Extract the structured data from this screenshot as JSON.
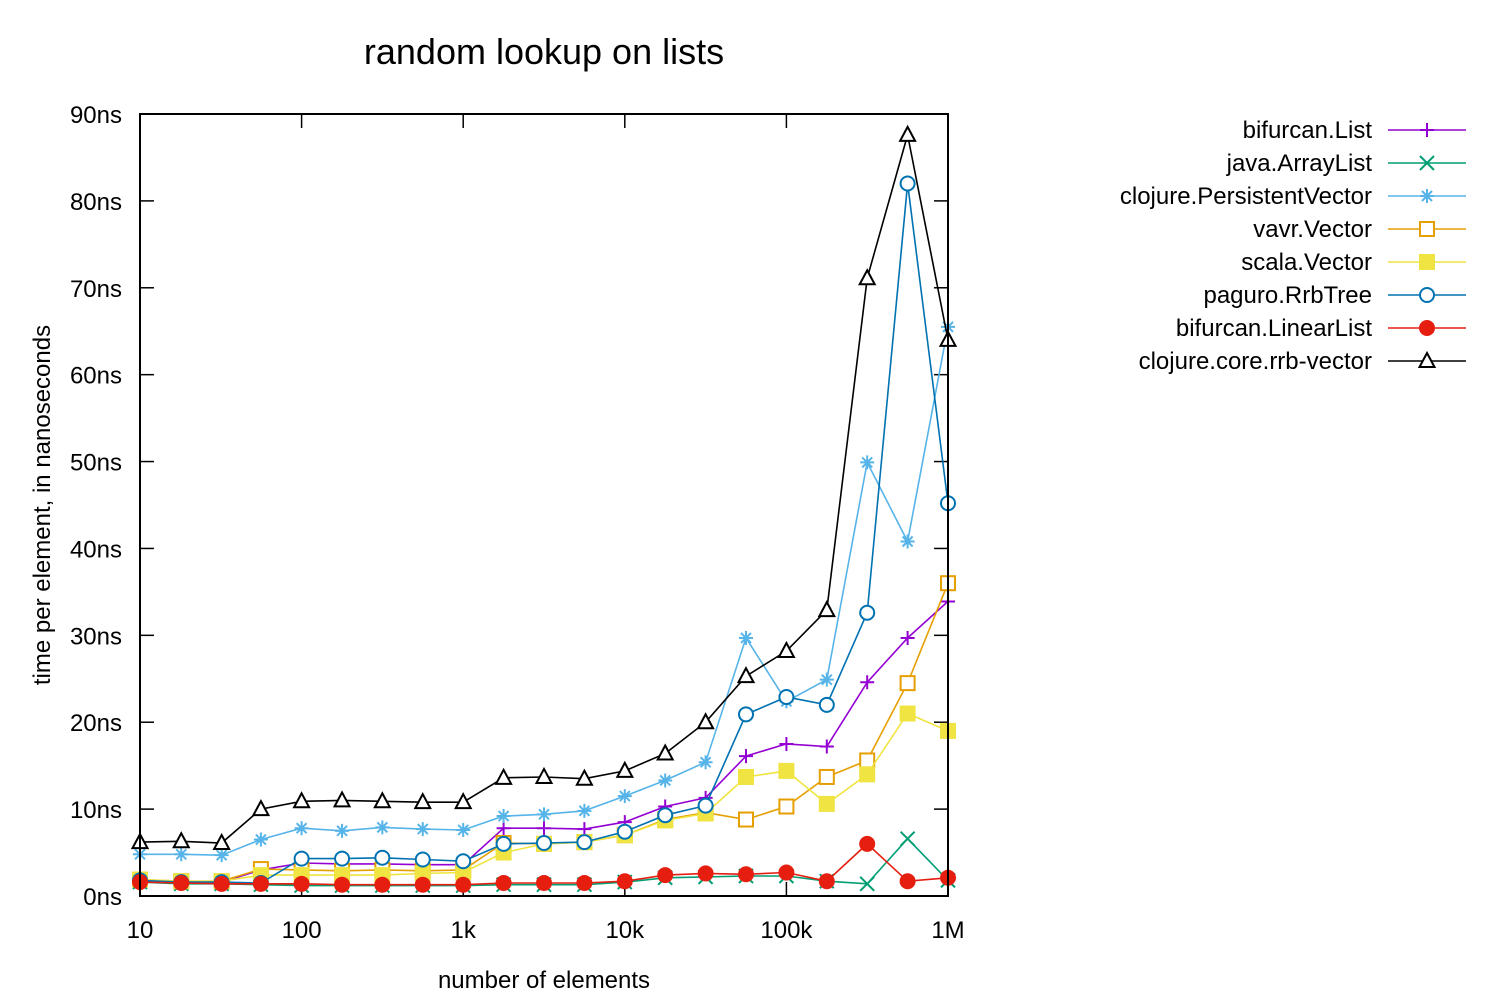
{
  "chart_data": {
    "type": "line",
    "title": "random lookup on lists",
    "xlabel": "number of elements",
    "ylabel": "time per element, in nanoseconds",
    "x_scale": "log10",
    "xlim": [
      10,
      1000000
    ],
    "ylim": [
      0,
      90
    ],
    "x_ticks": [
      {
        "value": 10,
        "label": "10"
      },
      {
        "value": 100,
        "label": "100"
      },
      {
        "value": 1000,
        "label": "1k"
      },
      {
        "value": 10000,
        "label": "10k"
      },
      {
        "value": 100000,
        "label": "100k"
      },
      {
        "value": 1000000,
        "label": "1M"
      }
    ],
    "y_ticks": [
      {
        "value": 0,
        "label": "0ns"
      },
      {
        "value": 10,
        "label": "10ns"
      },
      {
        "value": 20,
        "label": "20ns"
      },
      {
        "value": 30,
        "label": "30ns"
      },
      {
        "value": 40,
        "label": "40ns"
      },
      {
        "value": 50,
        "label": "50ns"
      },
      {
        "value": 60,
        "label": "60ns"
      },
      {
        "value": 70,
        "label": "70ns"
      },
      {
        "value": 80,
        "label": "80ns"
      },
      {
        "value": 90,
        "label": "90ns"
      }
    ],
    "grid": false,
    "legend_position": "right",
    "x": [
      10,
      18,
      32,
      56,
      100,
      178,
      316,
      562,
      1000,
      1778,
      3162,
      5623,
      10000,
      17783,
      31623,
      56234,
      100000,
      177828,
      316228,
      562341,
      1000000
    ],
    "series": [
      {
        "name": "bifurcan.List",
        "color": "#9400d3",
        "marker": "plus",
        "values": [
          1.8,
          1.6,
          1.6,
          3.0,
          3.8,
          3.7,
          3.7,
          3.6,
          3.6,
          7.8,
          7.8,
          7.7,
          8.5,
          10.3,
          11.3,
          16.1,
          17.5,
          17.2,
          24.6,
          29.7,
          33.9
        ]
      },
      {
        "name": "java.ArrayList",
        "color": "#009e73",
        "marker": "cross",
        "values": [
          1.6,
          1.4,
          1.4,
          1.3,
          1.2,
          1.2,
          1.2,
          1.2,
          1.2,
          1.3,
          1.3,
          1.3,
          1.6,
          2.1,
          2.2,
          2.3,
          2.3,
          1.7,
          1.4,
          6.6,
          1.8
        ]
      },
      {
        "name": "clojure.PersistentVector",
        "color": "#56b4e9",
        "marker": "star",
        "values": [
          4.8,
          4.8,
          4.7,
          6.5,
          7.8,
          7.5,
          7.9,
          7.7,
          7.6,
          9.2,
          9.4,
          9.8,
          11.5,
          13.3,
          15.4,
          29.7,
          22.4,
          24.9,
          49.9,
          40.8,
          65.5
        ]
      },
      {
        "name": "vavr.Vector",
        "color": "#e69f00",
        "marker": "open-square",
        "values": [
          1.9,
          1.7,
          1.7,
          3.1,
          3.0,
          2.9,
          3.0,
          2.9,
          3.0,
          6.1,
          6.0,
          6.2,
          7.0,
          8.8,
          9.6,
          8.8,
          10.3,
          13.7,
          15.6,
          24.5,
          36.0
        ]
      },
      {
        "name": "scala.Vector",
        "color": "#f0e442",
        "marker": "filled-square",
        "values": [
          1.9,
          1.7,
          1.7,
          2.4,
          2.4,
          2.4,
          2.4,
          2.6,
          2.7,
          5.0,
          6.0,
          6.2,
          7.0,
          8.7,
          9.5,
          13.7,
          14.4,
          10.6,
          14.0,
          21.0,
          19.0
        ]
      },
      {
        "name": "paguro.RrbTree",
        "color": "#0072b2",
        "marker": "open-circle",
        "values": [
          1.8,
          1.6,
          1.6,
          1.5,
          4.3,
          4.3,
          4.4,
          4.2,
          4.0,
          6.0,
          6.1,
          6.2,
          7.4,
          9.3,
          10.4,
          20.9,
          22.9,
          22.0,
          32.6,
          82.0,
          45.2
        ]
      },
      {
        "name": "bifurcan.LinearList",
        "color": "#e51e10",
        "marker": "filled-circle",
        "values": [
          1.6,
          1.5,
          1.4,
          1.4,
          1.4,
          1.3,
          1.3,
          1.3,
          1.3,
          1.5,
          1.5,
          1.5,
          1.7,
          2.4,
          2.6,
          2.5,
          2.7,
          1.7,
          6.0,
          1.7,
          2.1
        ]
      },
      {
        "name": "clojure.core.rrb-vector",
        "color": "#000000",
        "marker": "open-triangle",
        "values": [
          6.2,
          6.3,
          6.1,
          10.0,
          10.9,
          11.0,
          10.9,
          10.8,
          10.8,
          13.6,
          13.7,
          13.5,
          14.4,
          16.4,
          20.0,
          25.3,
          28.2,
          32.9,
          71.1,
          87.6,
          64.0
        ]
      }
    ]
  }
}
